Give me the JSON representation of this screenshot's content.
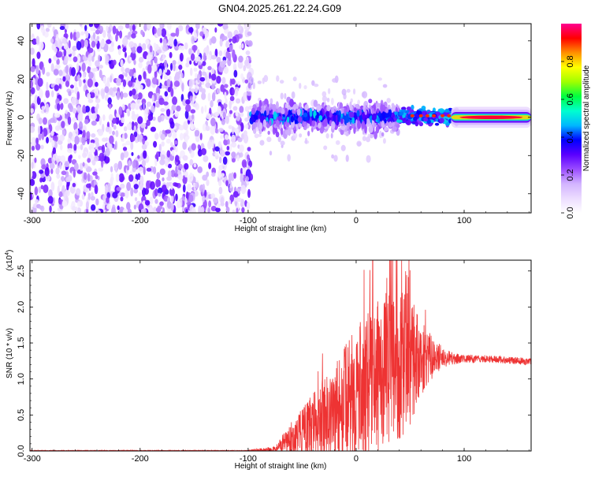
{
  "title": "GN04.2025.261.22.24.G09",
  "chart_data": [
    {
      "type": "heatmap",
      "xlabel": "Height of straight line (km)",
      "ylabel": "Frequency (Hz)",
      "xlim": [
        -302,
        162
      ],
      "ylim": [
        -50,
        49
      ],
      "xticks": [
        -300,
        -200,
        -100,
        0,
        100
      ],
      "yticks": [
        -40,
        -20,
        0,
        20,
        40
      ],
      "colorbar": {
        "label": "Normalized spectral amplitude",
        "range": [
          0,
          1
        ],
        "ticks": [
          "0.0",
          "0.2",
          "0.4",
          "0.6",
          "0.8"
        ],
        "colors": [
          "#ffffff",
          "#ecdcff",
          "#d2b4ff",
          "#9a4cff",
          "#5a00ff",
          "#0000ff",
          "#00b7ff",
          "#00ffd0",
          "#00ff40",
          "#a0ff00",
          "#ffff00",
          "#ff9000",
          "#ff0000",
          "#ff0090"
        ]
      },
      "regions": [
        {
          "x_range": [
            -302,
            -97
          ],
          "description_level": 0.1,
          "freq_spread": [
            -50,
            49
          ]
        },
        {
          "x_range": [
            -97,
            40
          ],
          "description_level": 0.3,
          "freq_spread": [
            -10,
            8
          ]
        },
        {
          "x_range": [
            40,
            90
          ],
          "description_level": 0.5,
          "freq_spread": [
            -3,
            4
          ]
        },
        {
          "x_range": [
            90,
            162
          ],
          "description_level": 0.95,
          "freq_spread": [
            -2,
            2
          ]
        }
      ]
    },
    {
      "type": "line",
      "xlabel": "Height of straight line (km)",
      "ylabel": "SNR (10 * v/v)",
      "yexponent": "(x10",
      "yexponent_power": "4",
      "yexponent_close": ")",
      "xlim": [
        -302,
        162
      ],
      "ylim": [
        0,
        2.65
      ],
      "xticks": [
        -300,
        -200,
        -100,
        0,
        100
      ],
      "yticks": [
        0.0,
        0.5,
        1.0,
        1.5,
        2.0,
        2.5
      ],
      "ytick_labels": [
        "0.0",
        "0.5",
        "1.0",
        "1.5",
        "2.0",
        "2.5"
      ],
      "color": "#ee3333",
      "envelope": {
        "x": [
          -302,
          -100,
          -75,
          -60,
          -40,
          -20,
          0,
          10,
          20,
          30,
          40,
          50,
          60,
          70,
          80,
          90,
          100,
          120,
          140,
          162
        ],
        "mean": [
          0.005,
          0.005,
          0.02,
          0.15,
          0.35,
          0.55,
          0.8,
          0.95,
          1.05,
          1.15,
          1.2,
          1.25,
          1.3,
          1.3,
          1.3,
          1.28,
          1.28,
          1.28,
          1.26,
          1.24
        ],
        "amp": [
          0.005,
          0.005,
          0.05,
          0.25,
          0.45,
          0.7,
          0.9,
          1.0,
          1.05,
          1.1,
          1.05,
          0.9,
          0.55,
          0.3,
          0.15,
          0.08,
          0.06,
          0.05,
          0.05,
          0.05
        ]
      }
    }
  ]
}
